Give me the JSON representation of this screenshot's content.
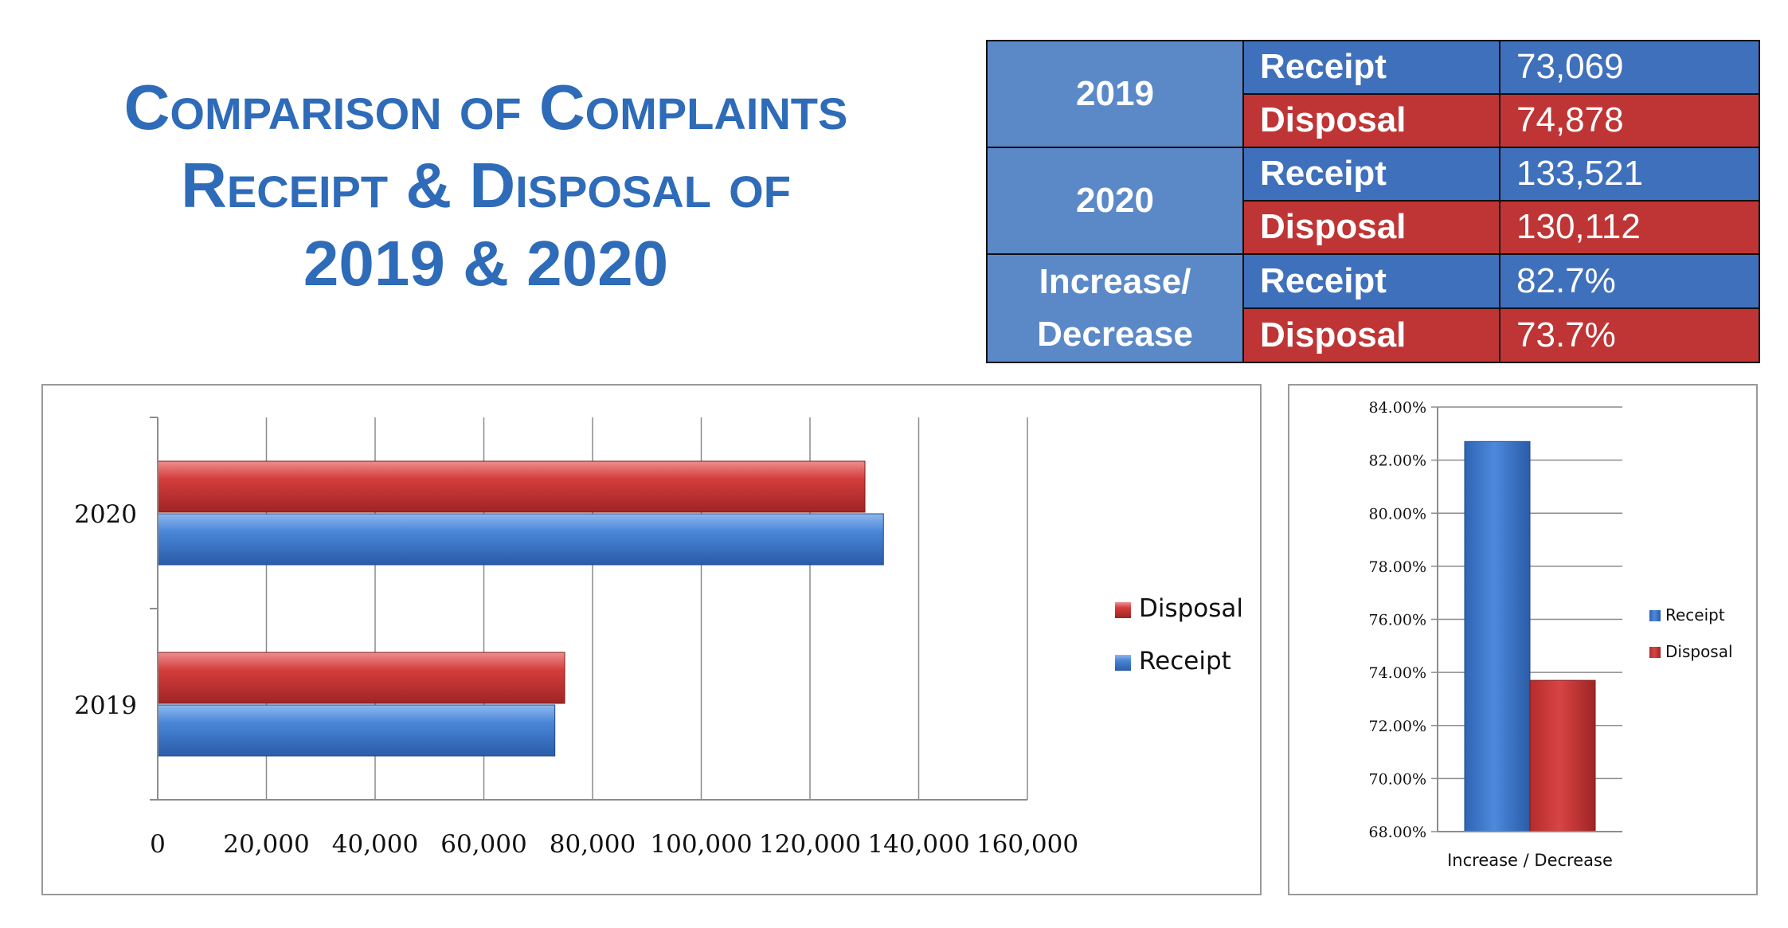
{
  "title": {
    "line1": "Comparison of Complaints",
    "line2": "Receipt & Disposal of",
    "line3": "2019 & 2020"
  },
  "table": {
    "rows": [
      {
        "year": "2019",
        "receipt_label": "Receipt",
        "receipt_value": "73,069",
        "disposal_label": "Disposal",
        "disposal_value": "74,878"
      },
      {
        "year": "2020",
        "receipt_label": "Receipt",
        "receipt_value": "133,521",
        "disposal_label": "Disposal",
        "disposal_value": "130,112"
      },
      {
        "year": "Increase/ Decrease",
        "receipt_label": "Receipt",
        "receipt_value": "82.7%",
        "disposal_label": "Disposal",
        "disposal_value": "73.7%"
      }
    ]
  },
  "colors": {
    "title": "#2e6bb8",
    "receipt": "#3f7fd6",
    "disposal": "#d03a3a"
  },
  "chart_data": [
    {
      "type": "bar",
      "orientation": "horizontal",
      "categories": [
        "2019",
        "2020"
      ],
      "series": [
        {
          "name": "Receipt",
          "values": [
            73069,
            133521
          ],
          "color": "#3f7fd6"
        },
        {
          "name": "Disposal",
          "values": [
            74878,
            130112
          ],
          "color": "#d03a3a"
        }
      ],
      "xlim": [
        0,
        160000
      ],
      "xticks": [
        "0",
        "20,000",
        "40,000",
        "60,000",
        "80,000",
        "100,000",
        "120,000",
        "140,000",
        "160,000"
      ],
      "grid": true,
      "legend": "right"
    },
    {
      "type": "bar",
      "categories": [
        "Increase / Decrease"
      ],
      "series": [
        {
          "name": "Receipt",
          "values": [
            82.7
          ],
          "color": "#3f7fd6"
        },
        {
          "name": "Disposal",
          "values": [
            73.7
          ],
          "color": "#d03a3a"
        }
      ],
      "ylim": [
        68,
        84
      ],
      "yticks": [
        "68.00%",
        "70.00%",
        "72.00%",
        "74.00%",
        "76.00%",
        "78.00%",
        "80.00%",
        "82.00%",
        "84.00%"
      ],
      "grid": true,
      "legend": "right"
    }
  ]
}
